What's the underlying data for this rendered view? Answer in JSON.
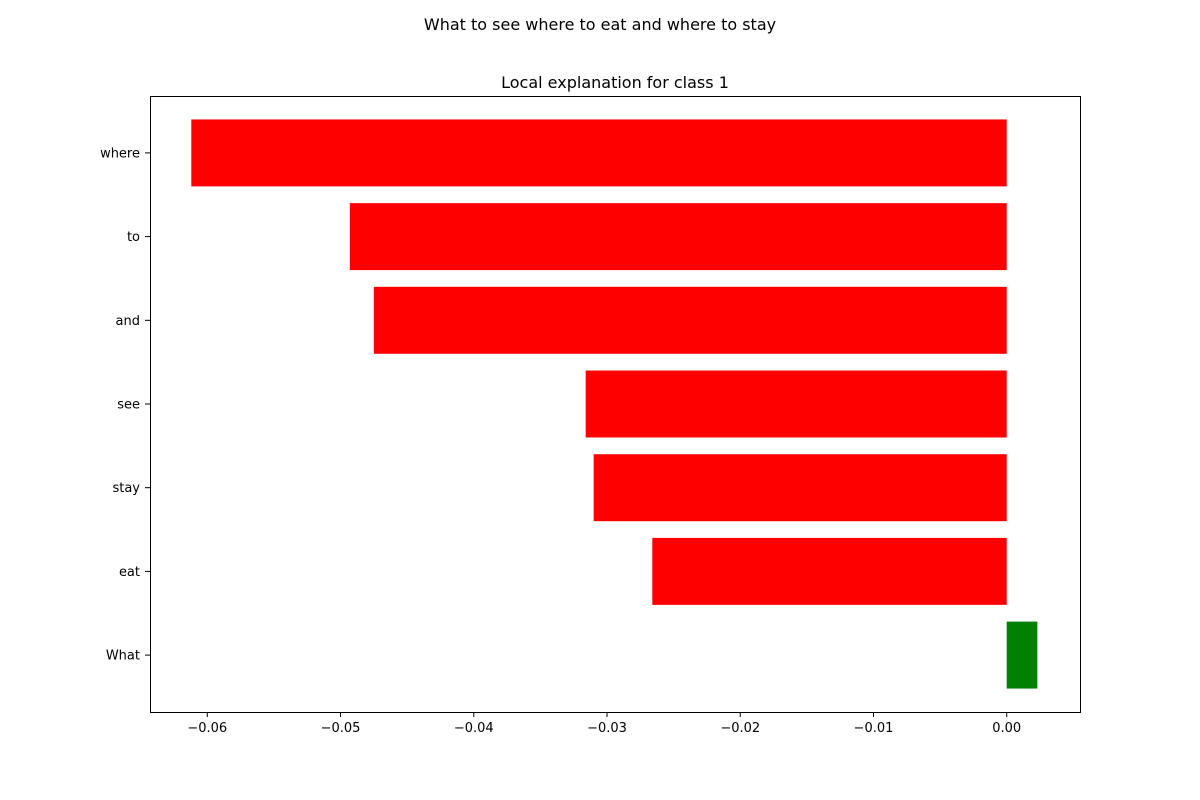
{
  "chart_data": {
    "type": "bar",
    "orientation": "horizontal",
    "suptitle": "What to see where to eat and where to stay",
    "title": "Local explanation for class 1",
    "xlabel": "",
    "ylabel": "",
    "categories": [
      "What",
      "eat",
      "stay",
      "see",
      "and",
      "to",
      "where"
    ],
    "values": [
      0.0023,
      -0.0266,
      -0.031,
      -0.0316,
      -0.0475,
      -0.0493,
      -0.0612
    ],
    "colors": {
      "positive": "#008000",
      "negative": "#ff0000"
    },
    "xlim": [
      -0.0643,
      0.0055
    ],
    "xticks": [
      -0.06,
      -0.05,
      -0.04,
      -0.03,
      -0.02,
      -0.01,
      0.0
    ],
    "xtick_labels": [
      "−0.06",
      "−0.05",
      "−0.04",
      "−0.03",
      "−0.02",
      "−0.01",
      "0.00"
    ],
    "grid": false,
    "legend": "none"
  }
}
